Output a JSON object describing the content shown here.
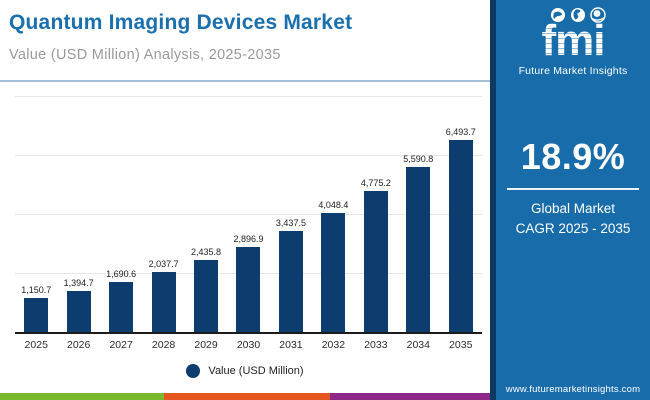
{
  "header": {
    "title": "Quantum Imaging Devices Market",
    "subtitle": "Value (USD Million) Analysis, 2025-2035"
  },
  "brand": {
    "logo_text": "fmi",
    "logo_subtext": "Future Market Insights",
    "website": "www.futuremarketinsights.com"
  },
  "kpi": {
    "value": "18.9%",
    "line1": "Global Market",
    "line2": "CAGR 2025 - 2035"
  },
  "legend": {
    "label": "Value (USD Million)"
  },
  "chart_data": {
    "type": "bar",
    "title": "Quantum Imaging Devices Market",
    "subtitle": "Value (USD Million) Analysis, 2025-2035",
    "categories": [
      "2025",
      "2026",
      "2027",
      "2028",
      "2029",
      "2030",
      "2031",
      "2032",
      "2033",
      "2034",
      "2035"
    ],
    "values": [
      1150.7,
      1394.7,
      1690.6,
      2037.7,
      2435.8,
      2896.9,
      3437.5,
      4048.4,
      4775.2,
      5590.8,
      6493.7
    ],
    "value_labels": [
      "1,150.7",
      "1,394.7",
      "1,690.6",
      "2,037.7",
      "2,435.8",
      "2,896.9",
      "3,437.5",
      "4,048.4",
      "4,775.2",
      "5,590.8",
      "6,493.7"
    ],
    "xlabel": "",
    "ylabel": "Value (USD Million)",
    "ylim": [
      0,
      8000
    ],
    "gridline_values": [
      2000,
      4000,
      6000,
      8000
    ],
    "grid": "horizontal only",
    "legend_position": "bottom",
    "bar_color": "#0d3c6e"
  },
  "colors": {
    "title_blue": "#1a6fae",
    "sidebar_blue": "#186caa",
    "sidebar_edge_navy": "#0d3a63",
    "bar_navy": "#0d3c6e",
    "stripe_colors": [
      "#7ab82c",
      "#e4571f",
      "#8d2989"
    ]
  }
}
